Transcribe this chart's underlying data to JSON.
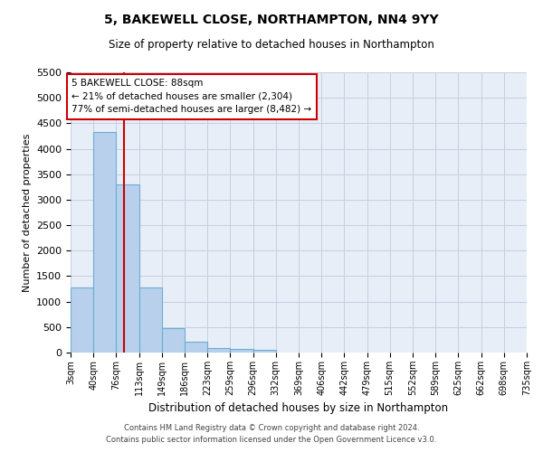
{
  "title_line1": "5, BAKEWELL CLOSE, NORTHAMPTON, NN4 9YY",
  "title_line2": "Size of property relative to detached houses in Northampton",
  "xlabel": "Distribution of detached houses by size in Northampton",
  "ylabel": "Number of detached properties",
  "footer_line1": "Contains HM Land Registry data © Crown copyright and database right 2024.",
  "footer_line2": "Contains public sector information licensed under the Open Government Licence v3.0.",
  "annotation_title": "5 BAKEWELL CLOSE: 88sqm",
  "annotation_line1": "← 21% of detached houses are smaller (2,304)",
  "annotation_line2": "77% of semi-detached houses are larger (8,482) →",
  "property_size": 88,
  "bin_edges": [
    3,
    40,
    76,
    113,
    149,
    186,
    223,
    259,
    296,
    332,
    369,
    406,
    442,
    479,
    515,
    552,
    589,
    625,
    662,
    698,
    735
  ],
  "bar_heights": [
    1270,
    4330,
    3300,
    1280,
    480,
    210,
    90,
    70,
    55,
    0,
    0,
    0,
    0,
    0,
    0,
    0,
    0,
    0,
    0,
    0
  ],
  "bar_color": "#b8d0eb",
  "bar_edge_color": "#6aaed6",
  "red_line_color": "#cc0000",
  "annotation_box_color": "#cc0000",
  "background_color": "#e8eef8",
  "grid_color": "#c5cfe0",
  "ylim": [
    0,
    5500
  ],
  "yticks": [
    0,
    500,
    1000,
    1500,
    2000,
    2500,
    3000,
    3500,
    4000,
    4500,
    5000,
    5500
  ]
}
